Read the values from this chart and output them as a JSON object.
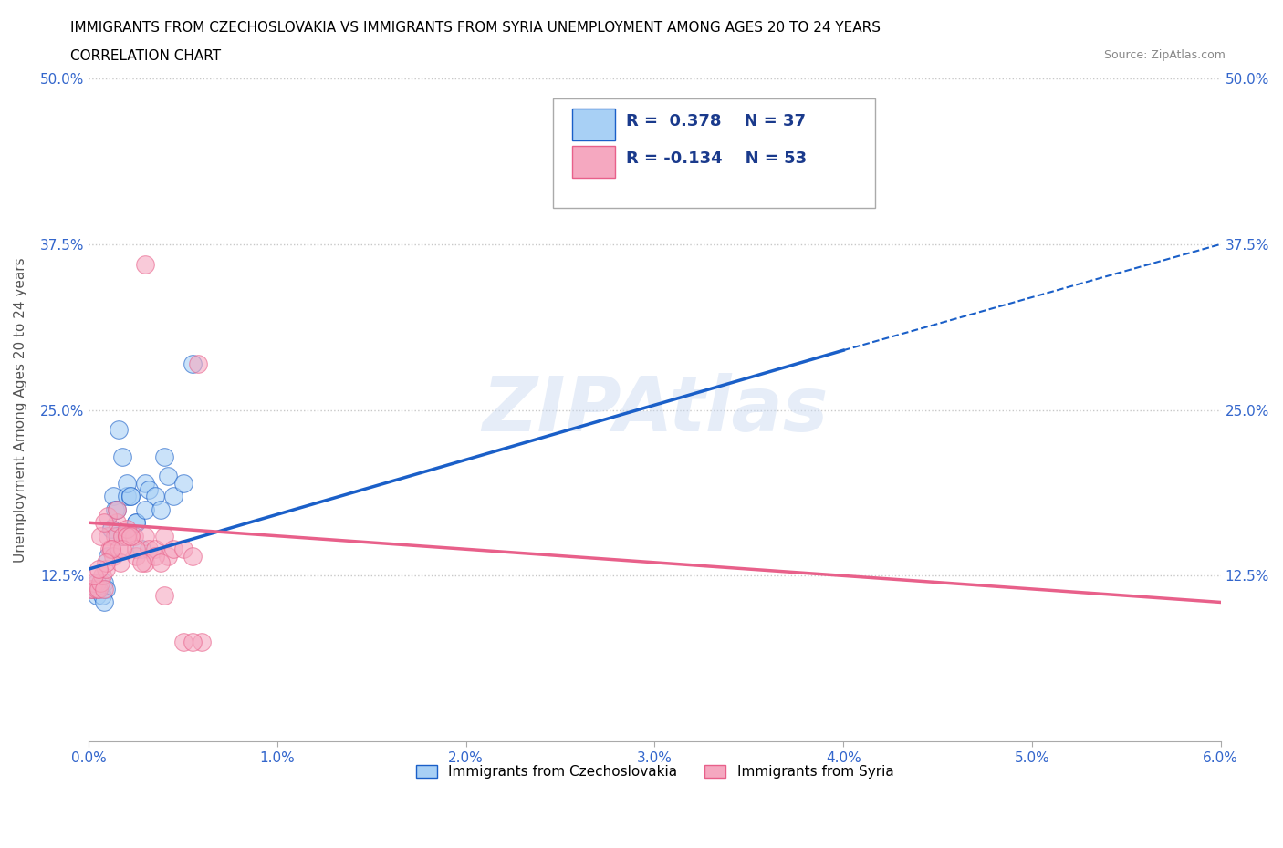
{
  "title_line1": "IMMIGRANTS FROM CZECHOSLOVAKIA VS IMMIGRANTS FROM SYRIA UNEMPLOYMENT AMONG AGES 20 TO 24 YEARS",
  "title_line2": "CORRELATION CHART",
  "source_text": "Source: ZipAtlas.com",
  "ylabel": "Unemployment Among Ages 20 to 24 years",
  "xlim": [
    0.0,
    0.06
  ],
  "ylim": [
    0.0,
    0.5
  ],
  "xticks": [
    0.0,
    0.01,
    0.02,
    0.03,
    0.04,
    0.05,
    0.06
  ],
  "xticklabels": [
    "0.0%",
    "1.0%",
    "2.0%",
    "3.0%",
    "4.0%",
    "5.0%",
    "6.0%"
  ],
  "yticks": [
    0.0,
    0.125,
    0.25,
    0.375,
    0.5
  ],
  "yticklabels": [
    "",
    "12.5%",
    "25.0%",
    "37.5%",
    "50.0%"
  ],
  "R_czech": 0.378,
  "N_czech": 37,
  "R_syria": -0.134,
  "N_syria": 53,
  "color_czech": "#a8d0f5",
  "color_syria": "#f5a8c0",
  "line_color_czech": "#1a5fc8",
  "line_color_syria": "#e8608a",
  "legend_label_czech": "Immigrants from Czechoslovakia",
  "legend_label_syria": "Immigrants from Syria",
  "czech_line_x0": 0.0,
  "czech_line_y0": 0.13,
  "czech_line_x1": 0.04,
  "czech_line_y1": 0.295,
  "czech_line_dash_x1": 0.06,
  "czech_line_dash_y1": 0.375,
  "syria_line_x0": 0.0,
  "syria_line_y0": 0.165,
  "syria_line_x1": 0.06,
  "syria_line_y1": 0.105,
  "czech_x": [
    0.0002,
    0.0003,
    0.0004,
    0.0005,
    0.0006,
    0.0007,
    0.0008,
    0.0009,
    0.001,
    0.0012,
    0.0013,
    0.0014,
    0.0015,
    0.0016,
    0.0018,
    0.002,
    0.0022,
    0.0025,
    0.003,
    0.0032,
    0.0035,
    0.004,
    0.0042,
    0.0045,
    0.005,
    0.0055,
    0.0004,
    0.0008,
    0.0012,
    0.0018,
    0.0025,
    0.003,
    0.0038,
    0.0028,
    0.002,
    0.0015,
    0.0022
  ],
  "czech_y": [
    0.115,
    0.115,
    0.11,
    0.115,
    0.115,
    0.11,
    0.12,
    0.115,
    0.14,
    0.16,
    0.185,
    0.175,
    0.175,
    0.235,
    0.215,
    0.185,
    0.185,
    0.165,
    0.195,
    0.19,
    0.185,
    0.215,
    0.2,
    0.185,
    0.195,
    0.285,
    0.12,
    0.105,
    0.16,
    0.155,
    0.165,
    0.175,
    0.175,
    0.145,
    0.195,
    0.155,
    0.185
  ],
  "syria_x": [
    0.0001,
    0.0002,
    0.0003,
    0.0004,
    0.0005,
    0.0006,
    0.0007,
    0.0008,
    0.0009,
    0.001,
    0.0011,
    0.0012,
    0.0013,
    0.0014,
    0.0015,
    0.0016,
    0.0017,
    0.0018,
    0.002,
    0.0022,
    0.0024,
    0.0025,
    0.003,
    0.0032,
    0.0035,
    0.004,
    0.0042,
    0.0045,
    0.005,
    0.0055,
    0.006,
    0.0003,
    0.0006,
    0.001,
    0.0015,
    0.002,
    0.0025,
    0.003,
    0.0035,
    0.004,
    0.005,
    0.0055,
    0.0058,
    0.0008,
    0.003,
    0.002,
    0.0018,
    0.0012,
    0.0009,
    0.0005,
    0.0022,
    0.0028,
    0.0038
  ],
  "syria_y": [
    0.115,
    0.115,
    0.12,
    0.115,
    0.115,
    0.12,
    0.125,
    0.115,
    0.13,
    0.155,
    0.145,
    0.145,
    0.14,
    0.155,
    0.165,
    0.145,
    0.135,
    0.155,
    0.155,
    0.155,
    0.155,
    0.14,
    0.155,
    0.145,
    0.145,
    0.155,
    0.14,
    0.145,
    0.145,
    0.14,
    0.075,
    0.125,
    0.155,
    0.17,
    0.175,
    0.16,
    0.145,
    0.135,
    0.14,
    0.11,
    0.075,
    0.075,
    0.285,
    0.165,
    0.36,
    0.155,
    0.145,
    0.145,
    0.135,
    0.13,
    0.155,
    0.135,
    0.135
  ]
}
